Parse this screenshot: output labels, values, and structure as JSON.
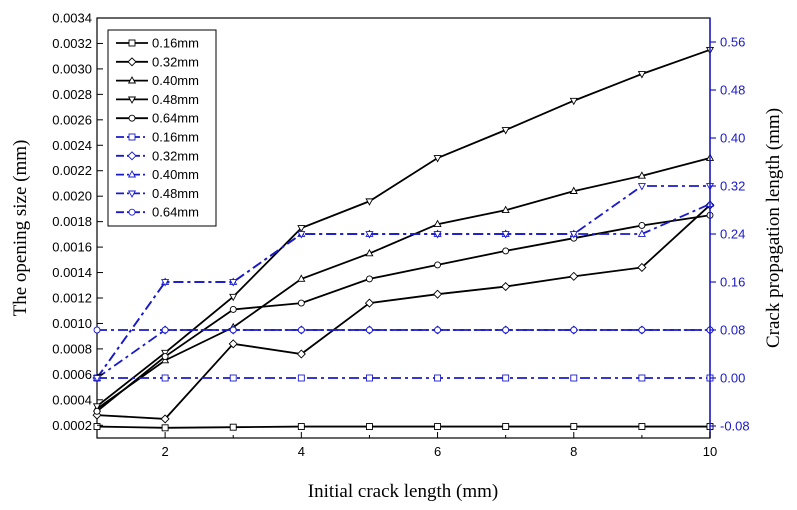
{
  "chart_data": {
    "type": "line",
    "xlabel": "Initial crack length (mm)",
    "ylabel_left": "The opening size (mm)",
    "ylabel_right": "Crack propagation length (mm)",
    "x_range": [
      1,
      10
    ],
    "x_ticks": [
      2,
      4,
      6,
      8,
      10
    ],
    "y_left_range": [
      0.0001,
      0.0034
    ],
    "y_left_ticks": [
      "0.0002",
      "0.0004",
      "0.0006",
      "0.0008",
      "0.0010",
      "0.0012",
      "0.0014",
      "0.0016",
      "0.0018",
      "0.0020",
      "0.0022",
      "0.0024",
      "0.0026",
      "0.0028",
      "0.0030",
      "0.0032",
      "0.0034"
    ],
    "y_right_range": [
      -0.1,
      0.6
    ],
    "y_right_ticks": [
      "-0.08",
      "0.00",
      "0.08",
      "0.16",
      "0.24",
      "0.32",
      "0.40",
      "0.48",
      "0.56"
    ],
    "left_axis_color": "#000000",
    "right_axis_color": "#1a1acc",
    "legend_position": "top-left",
    "x": [
      1,
      2,
      3,
      4,
      5,
      6,
      7,
      8,
      9,
      10
    ],
    "series": [
      {
        "name": "0.16mm",
        "axis": "left",
        "style": "solid",
        "marker": "square",
        "color": "#000000",
        "values": [
          0.00019,
          0.00018,
          0.000185,
          0.00019,
          0.00019,
          0.00019,
          0.00019,
          0.00019,
          0.00019,
          0.00019
        ]
      },
      {
        "name": "0.32mm",
        "axis": "left",
        "style": "solid",
        "marker": "diamond",
        "color": "#000000",
        "values": [
          0.00028,
          0.00025,
          0.00084,
          0.00076,
          0.00116,
          0.00123,
          0.00129,
          0.00137,
          0.00144,
          0.00193
        ]
      },
      {
        "name": "0.40mm",
        "axis": "left",
        "style": "solid",
        "marker": "triangle-up",
        "color": "#000000",
        "values": [
          0.00033,
          0.00071,
          0.00097,
          0.00135,
          0.00155,
          0.00178,
          0.00189,
          0.00204,
          0.00216,
          0.0023
        ]
      },
      {
        "name": "0.48mm",
        "axis": "left",
        "style": "solid",
        "marker": "triangle-down",
        "color": "#000000",
        "values": [
          0.00035,
          0.00077,
          0.00121,
          0.00175,
          0.00196,
          0.0023,
          0.00252,
          0.00275,
          0.00296,
          0.00315
        ]
      },
      {
        "name": "0.64mm",
        "axis": "left",
        "style": "solid",
        "marker": "circle",
        "color": "#000000",
        "values": [
          0.00031,
          0.00074,
          0.00111,
          0.00116,
          0.00135,
          0.00146,
          0.00157,
          0.00167,
          0.00177,
          0.00185
        ]
      },
      {
        "name": "0.16mm",
        "axis": "right",
        "style": "dashdot",
        "marker": "square",
        "color": "#1a1acc",
        "values": [
          0.0,
          0.0,
          0.0,
          0.0,
          0.0,
          0.0,
          0.0,
          0.0,
          0.0,
          0.0
        ]
      },
      {
        "name": "0.32mm",
        "axis": "right",
        "style": "dashdot",
        "marker": "diamond",
        "color": "#1a1acc",
        "values": [
          0.0,
          0.08,
          0.08,
          0.08,
          0.08,
          0.08,
          0.08,
          0.08,
          0.08,
          0.08
        ]
      },
      {
        "name": "0.40mm",
        "axis": "right",
        "style": "dashdot",
        "marker": "triangle-up",
        "color": "#1a1acc",
        "values": [
          0.0,
          0.16,
          0.16,
          0.24,
          0.24,
          0.24,
          0.24,
          0.24,
          0.24,
          0.29
        ]
      },
      {
        "name": "0.48mm",
        "axis": "right",
        "style": "dashdot",
        "marker": "triangle-down",
        "color": "#1a1acc",
        "values": [
          0.0,
          0.16,
          0.16,
          0.24,
          0.24,
          0.24,
          0.24,
          0.24,
          0.32,
          0.32
        ]
      },
      {
        "name": "0.64mm",
        "axis": "right",
        "style": "dashdot",
        "marker": "circle",
        "color": "#1a1acc",
        "values": [
          0.08,
          0.08,
          0.08,
          0.08,
          0.08,
          0.08,
          0.08,
          0.08,
          0.08,
          0.08
        ]
      }
    ]
  }
}
